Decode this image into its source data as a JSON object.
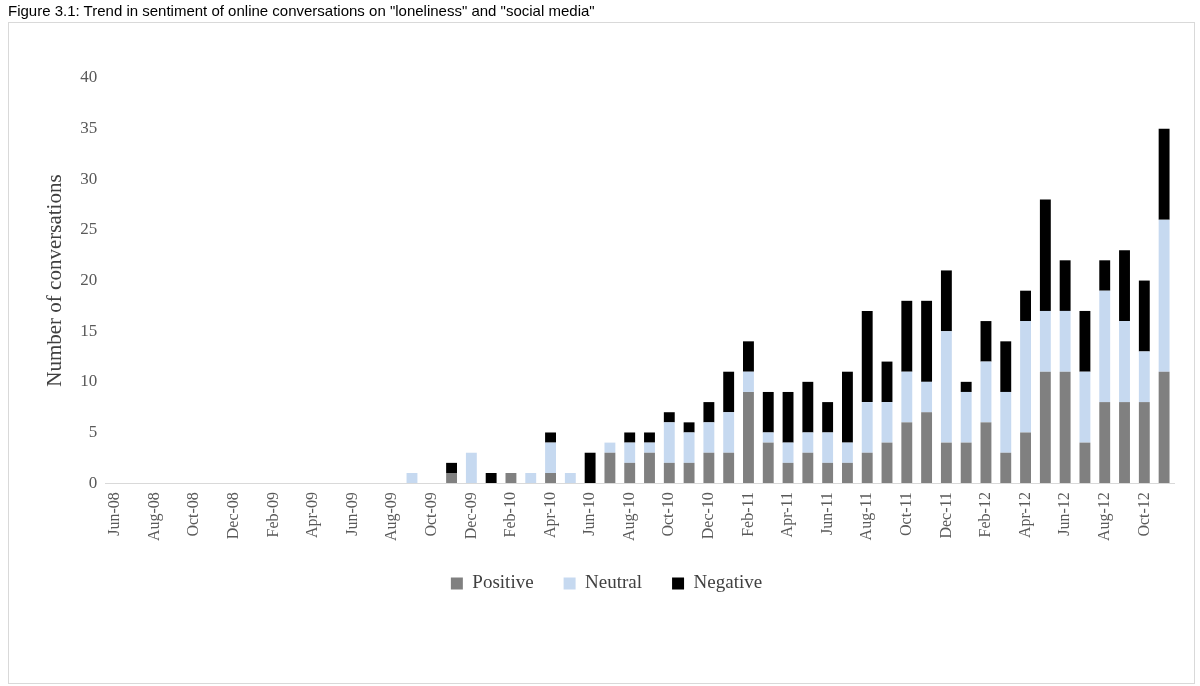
{
  "chart_data": {
    "type": "bar",
    "stacked": true,
    "title": "Figure 3.1: Trend in sentiment of online conversations on \"loneliness\" and \"social media\"",
    "ylabel": "Number of conversations",
    "categories": [
      "Jun-08",
      null,
      "Aug-08",
      null,
      "Oct-08",
      null,
      "Dec-08",
      null,
      "Feb-09",
      null,
      "Apr-09",
      null,
      "Jun-09",
      null,
      "Aug-09",
      null,
      "Oct-09",
      null,
      "Dec-09",
      null,
      "Feb-10",
      null,
      "Apr-10",
      null,
      "Jun-10",
      null,
      "Aug-10",
      null,
      "Oct-10",
      null,
      "Dec-10",
      null,
      "Feb-11",
      null,
      "Apr-11",
      null,
      "Jun-11",
      null,
      "Aug-11",
      null,
      "Oct-11",
      null,
      "Dec-11",
      null,
      "Feb-12",
      null,
      "Apr-12",
      null,
      "Jun-12",
      null,
      "Aug-12",
      null,
      "Oct-12",
      null
    ],
    "series": [
      {
        "name": "Positive",
        "color": "#808080",
        "values": [
          0,
          0,
          0,
          0,
          0,
          0,
          0,
          0,
          0,
          0,
          0,
          0,
          0,
          0,
          0,
          0,
          0,
          1,
          0,
          0,
          1,
          0,
          1,
          0,
          0,
          3,
          2,
          3,
          2,
          2,
          3,
          3,
          9,
          4,
          2,
          3,
          2,
          2,
          3,
          4,
          6,
          7,
          4,
          4,
          6,
          3,
          5,
          11,
          11,
          4,
          8,
          8,
          8,
          11
        ]
      },
      {
        "name": "Neutral",
        "color": "#c6d9f0",
        "values": [
          0,
          0,
          0,
          0,
          0,
          0,
          0,
          0,
          0,
          0,
          0,
          0,
          0,
          0,
          0,
          1,
          0,
          0,
          3,
          0,
          0,
          1,
          3,
          1,
          0,
          1,
          2,
          1,
          4,
          3,
          3,
          4,
          2,
          1,
          2,
          2,
          3,
          2,
          5,
          4,
          5,
          3,
          11,
          5,
          6,
          6,
          11,
          6,
          6,
          7,
          11,
          8,
          5,
          15
        ]
      },
      {
        "name": "Negative",
        "color": "#000000",
        "values": [
          0,
          0,
          0,
          0,
          0,
          0,
          0,
          0,
          0,
          0,
          0,
          0,
          0,
          0,
          0,
          0,
          0,
          1,
          0,
          1,
          0,
          0,
          1,
          0,
          3,
          0,
          1,
          1,
          1,
          1,
          2,
          4,
          3,
          4,
          5,
          5,
          3,
          7,
          9,
          4,
          7,
          8,
          6,
          1,
          4,
          5,
          3,
          11,
          5,
          6,
          3,
          7,
          7,
          9
        ]
      }
    ],
    "ylim": [
      0,
      40
    ],
    "yticks": [
      0,
      5,
      10,
      15,
      20,
      25,
      30,
      35,
      40
    ],
    "grid": false,
    "legend": "bottom"
  }
}
